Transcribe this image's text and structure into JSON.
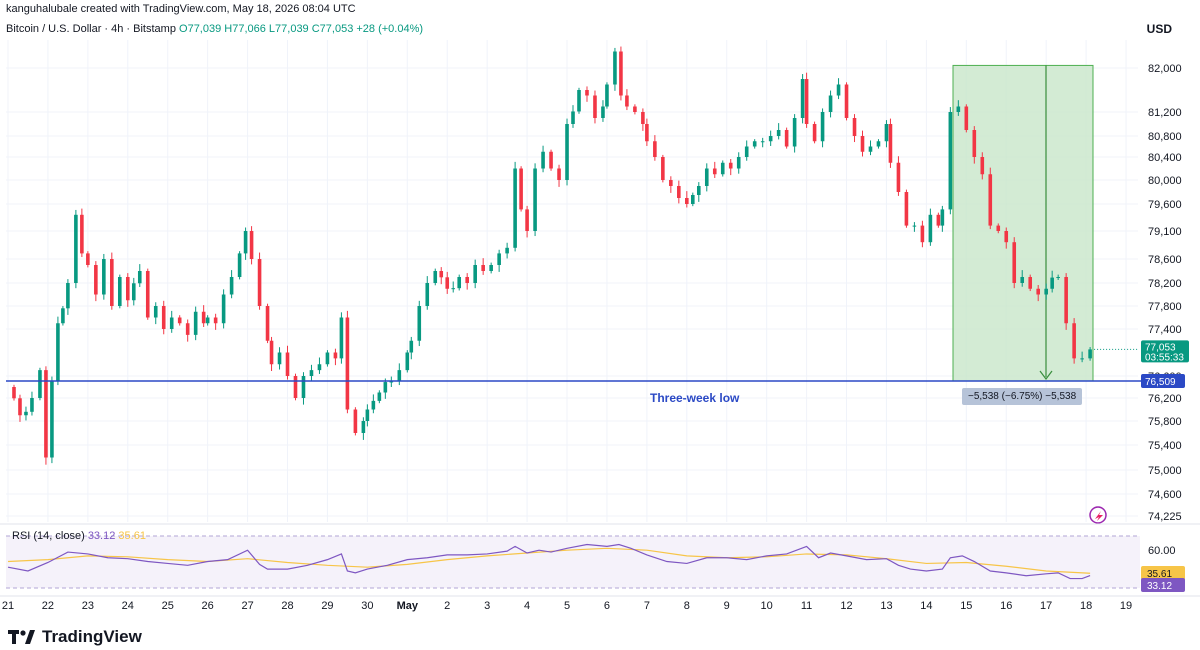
{
  "header": {
    "attribution": "kanguhalubale created with TradingView.com, May 18, 2026 08:04 UTC",
    "symbol": "Bitcoin / U.S. Dollar · 4h · Bitstamp",
    "ohlc_text": "O77,039 H77,066 L77,039 C77,053 +28 (+0.04%)"
  },
  "currency": "USD",
  "brand": "TradingView",
  "colors": {
    "up": "#089981",
    "down": "#f23645",
    "support_line": "#2b49c5",
    "rsi_line": "#7e57c2",
    "rsi_ma": "#f7c548",
    "measure_fill": "#c8e6c9",
    "measure_border": "#4caf50"
  },
  "chart_data": [
    {
      "type": "candlestick",
      "title": "Bitcoin / U.S. Dollar · 4h · Bitstamp",
      "y_ticks": [
        82000,
        81200,
        80800,
        80400,
        80000,
        79600,
        79100,
        78600,
        78200,
        77800,
        77400,
        76600,
        76200,
        75800,
        75400,
        75000,
        74600,
        74225
      ],
      "y_tick_labels": [
        "82,000",
        "81,200",
        "80,800",
        "80,400",
        "80,000",
        "79,600",
        "79,100",
        "78,600",
        "78,200",
        "77,800",
        "77,400",
        "76,600",
        "76,200",
        "75,800",
        "75,400",
        "75,000",
        "74,600",
        "74,225"
      ],
      "x_tick_labels": [
        "21",
        "22",
        "23",
        "24",
        "25",
        "26",
        "27",
        "28",
        "29",
        "30",
        "May",
        "2",
        "3",
        "4",
        "5",
        "6",
        "7",
        "8",
        "9",
        "10",
        "11",
        "12",
        "13",
        "14",
        "15",
        "16",
        "17",
        "18",
        "19"
      ],
      "last_price": "77,053",
      "countdown": "03:55:33",
      "support": {
        "value": 76509,
        "label": "76,509",
        "text": "Three-week low"
      },
      "measure": {
        "top": 82047,
        "bottom": 76509,
        "text": "−5,538 (−6.75%) −5,538"
      },
      "close_path": [
        [
          21.0,
          76400
        ],
        [
          21.3,
          75900
        ],
        [
          21.6,
          76200
        ],
        [
          21.8,
          76700
        ],
        [
          21.95,
          75200
        ],
        [
          22.1,
          76500
        ],
        [
          22.25,
          77500
        ],
        [
          22.5,
          78200
        ],
        [
          22.7,
          79400
        ],
        [
          22.85,
          78700
        ],
        [
          23.0,
          78500
        ],
        [
          23.2,
          78000
        ],
        [
          23.4,
          78600
        ],
        [
          23.6,
          77800
        ],
        [
          23.8,
          78300
        ],
        [
          24.0,
          77900
        ],
        [
          24.3,
          78400
        ],
        [
          24.5,
          77600
        ],
        [
          24.7,
          77800
        ],
        [
          24.9,
          77400
        ],
        [
          25.1,
          77600
        ],
        [
          25.3,
          77500
        ],
        [
          25.5,
          77300
        ],
        [
          25.7,
          77700
        ],
        [
          25.9,
          77500
        ],
        [
          26.0,
          77600
        ],
        [
          26.2,
          77500
        ],
        [
          26.4,
          78000
        ],
        [
          26.6,
          78300
        ],
        [
          26.8,
          78700
        ],
        [
          26.95,
          79100
        ],
        [
          27.1,
          78600
        ],
        [
          27.3,
          77800
        ],
        [
          27.5,
          77200
        ],
        [
          27.6,
          76800
        ],
        [
          27.8,
          77000
        ],
        [
          28.0,
          76600
        ],
        [
          28.2,
          76200
        ],
        [
          28.4,
          76600
        ],
        [
          28.6,
          76700
        ],
        [
          28.8,
          76800
        ],
        [
          29.0,
          77000
        ],
        [
          29.2,
          76900
        ],
        [
          29.35,
          77600
        ],
        [
          29.5,
          76000
        ],
        [
          29.7,
          75600
        ],
        [
          29.9,
          75800
        ],
        [
          30.0,
          76000
        ],
        [
          30.3,
          76300
        ],
        [
          30.6,
          76500
        ],
        [
          30.8,
          76700
        ],
        [
          31.0,
          77000
        ],
        [
          31.1,
          77200
        ],
        [
          31.3,
          77800
        ],
        [
          31.5,
          78200
        ],
        [
          31.7,
          78400
        ],
        [
          32.0,
          78100
        ],
        [
          32.3,
          78300
        ],
        [
          32.5,
          78200
        ],
        [
          32.7,
          78500
        ],
        [
          32.9,
          78400
        ],
        [
          33.1,
          78500
        ],
        [
          33.3,
          78700
        ],
        [
          33.5,
          78800
        ],
        [
          33.7,
          80200
        ],
        [
          33.85,
          79500
        ],
        [
          34.0,
          79100
        ],
        [
          34.2,
          80200
        ],
        [
          34.4,
          80500
        ],
        [
          34.6,
          80200
        ],
        [
          34.8,
          80000
        ],
        [
          35.0,
          81000
        ],
        [
          35.3,
          81600
        ],
        [
          35.5,
          81500
        ],
        [
          35.7,
          81100
        ],
        [
          35.9,
          81300
        ],
        [
          36.0,
          81700
        ],
        [
          36.2,
          82300
        ],
        [
          36.35,
          81500
        ],
        [
          36.5,
          81300
        ],
        [
          36.7,
          81200
        ],
        [
          36.9,
          81000
        ],
        [
          37.0,
          80700
        ],
        [
          37.2,
          80400
        ],
        [
          37.4,
          80000
        ],
        [
          37.6,
          79900
        ],
        [
          37.8,
          79700
        ],
        [
          38.0,
          79600
        ],
        [
          38.3,
          79900
        ],
        [
          38.5,
          80200
        ],
        [
          38.7,
          80100
        ],
        [
          38.9,
          80300
        ],
        [
          39.1,
          80200
        ],
        [
          39.3,
          80400
        ],
        [
          39.5,
          80600
        ],
        [
          39.7,
          80700
        ],
        [
          39.9,
          80700
        ],
        [
          40.1,
          80800
        ],
        [
          40.3,
          80900
        ],
        [
          40.5,
          80600
        ],
        [
          40.7,
          81100
        ],
        [
          40.9,
          81800
        ],
        [
          41.0,
          81000
        ],
        [
          41.2,
          80700
        ],
        [
          41.4,
          81200
        ],
        [
          41.6,
          81500
        ],
        [
          41.8,
          81700
        ],
        [
          42.0,
          81100
        ],
        [
          42.2,
          80800
        ],
        [
          42.4,
          80500
        ],
        [
          42.6,
          80600
        ],
        [
          42.8,
          80700
        ],
        [
          43.0,
          81000
        ],
        [
          43.1,
          80300
        ],
        [
          43.3,
          79800
        ],
        [
          43.5,
          79200
        ],
        [
          43.7,
          79200
        ],
        [
          43.9,
          78900
        ],
        [
          44.1,
          79400
        ],
        [
          44.3,
          79200
        ],
        [
          44.4,
          79500
        ],
        [
          44.6,
          81200
        ],
        [
          44.8,
          81300
        ],
        [
          45.0,
          80900
        ],
        [
          45.2,
          80400
        ],
        [
          45.4,
          80100
        ],
        [
          45.6,
          79200
        ],
        [
          45.8,
          79100
        ],
        [
          46.0,
          78900
        ],
        [
          46.2,
          78200
        ],
        [
          46.4,
          78300
        ],
        [
          46.6,
          78100
        ],
        [
          46.8,
          78000
        ],
        [
          47.0,
          78100
        ],
        [
          47.3,
          78300
        ],
        [
          47.5,
          77500
        ],
        [
          47.7,
          76900
        ],
        [
          47.9,
          76900
        ],
        [
          48.1,
          77053
        ]
      ],
      "rsi": {
        "label": "RSI (14, close)",
        "value": "33.12",
        "ma_value": "35.61",
        "y_ticks": [
          60
        ],
        "axis_label": "60.00",
        "last_label": "33.12",
        "ma_label": "35.61",
        "values": [
          [
            21.0,
            42
          ],
          [
            21.5,
            38
          ],
          [
            22.0,
            47
          ],
          [
            22.5,
            58
          ],
          [
            23.0,
            56
          ],
          [
            23.5,
            52
          ],
          [
            24.0,
            51
          ],
          [
            24.5,
            48
          ],
          [
            25.0,
            46
          ],
          [
            25.5,
            44
          ],
          [
            26.0,
            48
          ],
          [
            26.5,
            50
          ],
          [
            27.0,
            60
          ],
          [
            27.3,
            45
          ],
          [
            27.5,
            40
          ],
          [
            28.0,
            40
          ],
          [
            28.5,
            44
          ],
          [
            29.0,
            50
          ],
          [
            29.35,
            56
          ],
          [
            29.5,
            38
          ],
          [
            29.7,
            36
          ],
          [
            30.0,
            40
          ],
          [
            30.5,
            44
          ],
          [
            31.0,
            50
          ],
          [
            31.5,
            52
          ],
          [
            32.0,
            55
          ],
          [
            32.5,
            55
          ],
          [
            33.0,
            56
          ],
          [
            33.5,
            59
          ],
          [
            33.7,
            64
          ],
          [
            34.0,
            57
          ],
          [
            34.3,
            60
          ],
          [
            34.6,
            58
          ],
          [
            35.0,
            62
          ],
          [
            35.5,
            66
          ],
          [
            36.0,
            64
          ],
          [
            36.3,
            66
          ],
          [
            36.6,
            62
          ],
          [
            37.0,
            55
          ],
          [
            37.5,
            48
          ],
          [
            38.0,
            46
          ],
          [
            38.5,
            52
          ],
          [
            39.0,
            52
          ],
          [
            39.5,
            50
          ],
          [
            40.0,
            54
          ],
          [
            40.5,
            56
          ],
          [
            41.0,
            64
          ],
          [
            41.3,
            52
          ],
          [
            41.6,
            57
          ],
          [
            42.0,
            54
          ],
          [
            42.5,
            50
          ],
          [
            43.0,
            51
          ],
          [
            43.3,
            44
          ],
          [
            43.6,
            40
          ],
          [
            44.0,
            38
          ],
          [
            44.4,
            40
          ],
          [
            44.6,
            52
          ],
          [
            44.9,
            54
          ],
          [
            45.2,
            48
          ],
          [
            45.6,
            38
          ],
          [
            46.0,
            36
          ],
          [
            46.5,
            33
          ],
          [
            47.0,
            35
          ],
          [
            47.3,
            36
          ],
          [
            47.6,
            30
          ],
          [
            47.9,
            30
          ],
          [
            48.1,
            33.12
          ]
        ],
        "ma": [
          [
            21.0,
            48
          ],
          [
            22.0,
            50
          ],
          [
            23.0,
            54
          ],
          [
            24.0,
            53
          ],
          [
            25.0,
            50
          ],
          [
            26.0,
            48
          ],
          [
            27.0,
            51
          ],
          [
            28.0,
            47
          ],
          [
            29.0,
            44
          ],
          [
            30.0,
            42
          ],
          [
            31.0,
            45
          ],
          [
            32.0,
            50
          ],
          [
            33.0,
            54
          ],
          [
            34.0,
            57
          ],
          [
            35.0,
            60
          ],
          [
            36.0,
            62
          ],
          [
            37.0,
            60
          ],
          [
            38.0,
            54
          ],
          [
            39.0,
            52
          ],
          [
            40.0,
            53
          ],
          [
            41.0,
            56
          ],
          [
            42.0,
            55
          ],
          [
            43.0,
            51
          ],
          [
            44.0,
            46
          ],
          [
            45.0,
            47
          ],
          [
            46.0,
            43
          ],
          [
            47.0,
            38
          ],
          [
            48.1,
            35.61
          ]
        ]
      }
    }
  ]
}
